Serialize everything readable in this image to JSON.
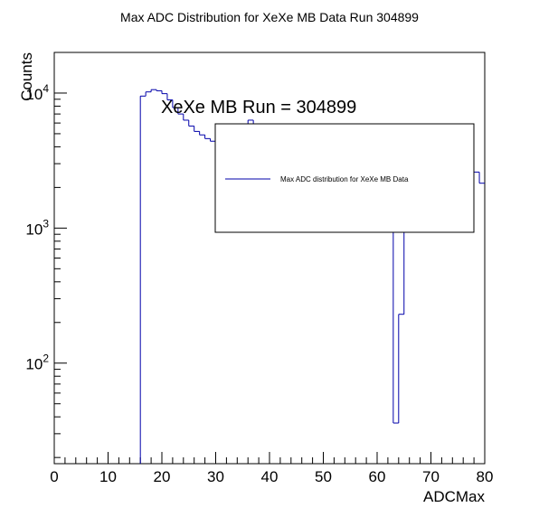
{
  "chart_data": {
    "type": "histogram",
    "title": "Max ADC Distribution for XeXe MB Data Run 304899",
    "xlabel": "ADCMax",
    "ylabel": "Counts",
    "annotation": "XeXe MB Run = 304899",
    "legend": {
      "entry": "Max ADC distribution for XeXe MB Data",
      "placement": "top-right",
      "line_color": "#0000aa"
    },
    "line_color": "#0000aa",
    "xlim": [
      0,
      80
    ],
    "ylim": [
      18,
      20000
    ],
    "log_y": true,
    "grid": false,
    "x_ticks": [
      "0",
      "10",
      "20",
      "30",
      "40",
      "50",
      "60",
      "70",
      "80"
    ],
    "y_tick_labels": [
      {
        "value": 100,
        "base": "10",
        "exp": "2"
      },
      {
        "value": 1000,
        "base": "10",
        "exp": "3"
      },
      {
        "value": 10000,
        "base": "10",
        "exp": "4"
      }
    ],
    "bin_width": 1,
    "bins": [
      {
        "x": 16,
        "y": 9500
      },
      {
        "x": 17,
        "y": 10200
      },
      {
        "x": 18,
        "y": 10600
      },
      {
        "x": 19,
        "y": 10400
      },
      {
        "x": 20,
        "y": 9900
      },
      {
        "x": 21,
        "y": 8900
      },
      {
        "x": 22,
        "y": 7800
      },
      {
        "x": 23,
        "y": 7000
      },
      {
        "x": 24,
        "y": 6300
      },
      {
        "x": 25,
        "y": 5700
      },
      {
        "x": 26,
        "y": 5200
      },
      {
        "x": 27,
        "y": 4900
      },
      {
        "x": 28,
        "y": 4600
      },
      {
        "x": 29,
        "y": 4400
      },
      {
        "x": 30,
        "y": 4200
      },
      {
        "x": 31,
        "y": 4500
      },
      {
        "x": 32,
        "y": 4700
      },
      {
        "x": 33,
        "y": 5000
      },
      {
        "x": 34,
        "y": 5200
      },
      {
        "x": 35,
        "y": 5500
      },
      {
        "x": 36,
        "y": 6300
      },
      {
        "x": 37,
        "y": 5600
      },
      {
        "x": 38,
        "y": 5300
      },
      {
        "x": 39,
        "y": 5000
      },
      {
        "x": 40,
        "y": 4800
      },
      {
        "x": 41,
        "y": 4600
      },
      {
        "x": 42,
        "y": 4400
      },
      {
        "x": 43,
        "y": 4200
      },
      {
        "x": 44,
        "y": 4100
      },
      {
        "x": 45,
        "y": 4000
      },
      {
        "x": 46,
        "y": 3900
      },
      {
        "x": 47,
        "y": 3800
      },
      {
        "x": 48,
        "y": 3700
      },
      {
        "x": 49,
        "y": 3600
      },
      {
        "x": 50,
        "y": 3500
      },
      {
        "x": 51,
        "y": 3400
      },
      {
        "x": 52,
        "y": 3300
      },
      {
        "x": 53,
        "y": 3200
      },
      {
        "x": 54,
        "y": 3150
      },
      {
        "x": 55,
        "y": 3100
      },
      {
        "x": 56,
        "y": 3000
      },
      {
        "x": 57,
        "y": 2950
      },
      {
        "x": 58,
        "y": 2900
      },
      {
        "x": 59,
        "y": 2850
      },
      {
        "x": 60,
        "y": 2800
      },
      {
        "x": 61,
        "y": 2750
      },
      {
        "x": 62,
        "y": 2700
      },
      {
        "x": 63,
        "y": 36
      },
      {
        "x": 64,
        "y": 230
      },
      {
        "x": 65,
        "y": 2600
      },
      {
        "x": 66,
        "y": 2600
      },
      {
        "x": 67,
        "y": 2600
      },
      {
        "x": 68,
        "y": 2600
      },
      {
        "x": 69,
        "y": 2600
      },
      {
        "x": 70,
        "y": 2600
      },
      {
        "x": 71,
        "y": 2600
      },
      {
        "x": 72,
        "y": 2600
      },
      {
        "x": 73,
        "y": 2600
      },
      {
        "x": 74,
        "y": 2600
      },
      {
        "x": 75,
        "y": 2600
      },
      {
        "x": 76,
        "y": 2600
      },
      {
        "x": 77,
        "y": 2600
      },
      {
        "x": 78,
        "y": 2600
      },
      {
        "x": 79,
        "y": 2150
      }
    ]
  }
}
